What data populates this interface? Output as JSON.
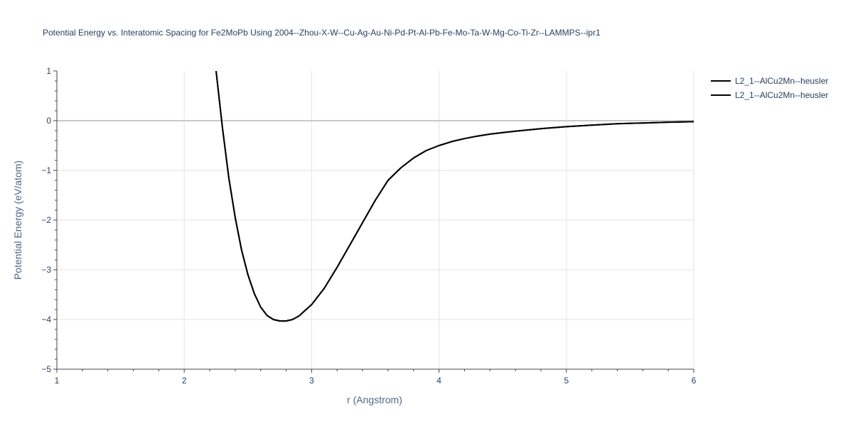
{
  "chart_data": {
    "type": "line",
    "title": "Potential Energy vs. Interatomic Spacing for Fe2MoPb Using 2004--Zhou-X-W--Cu-Ag-Au-Ni-Pd-Pt-Al-Pb-Fe-Mo-Ta-W-Mg-Co-Ti-Zr--LAMMPS--ipr1",
    "xlabel": "r (Angstrom)",
    "ylabel": "Potential Energy (eV/atom)",
    "xlim": [
      1,
      6
    ],
    "ylim": [
      -5,
      1
    ],
    "x_ticks": [
      "1",
      "2",
      "3",
      "4",
      "5",
      "6"
    ],
    "y_ticks": [
      "1",
      "0",
      "−1",
      "−2",
      "−3",
      "−4",
      "−5"
    ],
    "grid": true,
    "legend_position": "top-right",
    "series": [
      {
        "name": "L2_1--AlCu2Mn--heusler",
        "color": "#000000",
        "x": [
          2.25,
          2.3,
          2.35,
          2.4,
          2.45,
          2.5,
          2.55,
          2.6,
          2.65,
          2.7,
          2.75,
          2.8,
          2.85,
          2.9,
          3.0,
          3.1,
          3.2,
          3.3,
          3.4,
          3.5,
          3.6,
          3.7,
          3.8,
          3.9,
          4.0,
          4.1,
          4.2,
          4.3,
          4.4,
          4.5,
          4.6,
          4.8,
          5.0,
          5.2,
          5.4,
          5.6,
          5.8,
          6.0
        ],
        "y": [
          1.0,
          -0.15,
          -1.15,
          -1.95,
          -2.6,
          -3.1,
          -3.48,
          -3.75,
          -3.92,
          -4.0,
          -4.03,
          -4.03,
          -4.0,
          -3.93,
          -3.7,
          -3.37,
          -2.95,
          -2.5,
          -2.05,
          -1.6,
          -1.2,
          -0.95,
          -0.75,
          -0.6,
          -0.5,
          -0.42,
          -0.36,
          -0.31,
          -0.27,
          -0.24,
          -0.21,
          -0.16,
          -0.12,
          -0.09,
          -0.06,
          -0.045,
          -0.03,
          -0.02
        ]
      },
      {
        "name": "L2_1--AlCu2Mn--heusler",
        "color": "#000000",
        "x": [
          2.25,
          2.3,
          2.35,
          2.4,
          2.45,
          2.5,
          2.55,
          2.6,
          2.65,
          2.7,
          2.75,
          2.8,
          2.85,
          2.9,
          3.0,
          3.1,
          3.2,
          3.3,
          3.4,
          3.5,
          3.6,
          3.7,
          3.8,
          3.9,
          4.0,
          4.1,
          4.2,
          4.3,
          4.4,
          4.5,
          4.6,
          4.8,
          5.0,
          5.2,
          5.4,
          5.6,
          5.8,
          6.0
        ],
        "y": [
          1.0,
          -0.15,
          -1.15,
          -1.95,
          -2.6,
          -3.1,
          -3.48,
          -3.75,
          -3.92,
          -4.0,
          -4.03,
          -4.03,
          -4.0,
          -3.93,
          -3.7,
          -3.37,
          -2.95,
          -2.5,
          -2.05,
          -1.6,
          -1.2,
          -0.95,
          -0.75,
          -0.6,
          -0.5,
          -0.42,
          -0.36,
          -0.31,
          -0.27,
          -0.24,
          -0.21,
          -0.16,
          -0.12,
          -0.09,
          -0.06,
          -0.045,
          -0.03,
          -0.02
        ]
      }
    ]
  }
}
